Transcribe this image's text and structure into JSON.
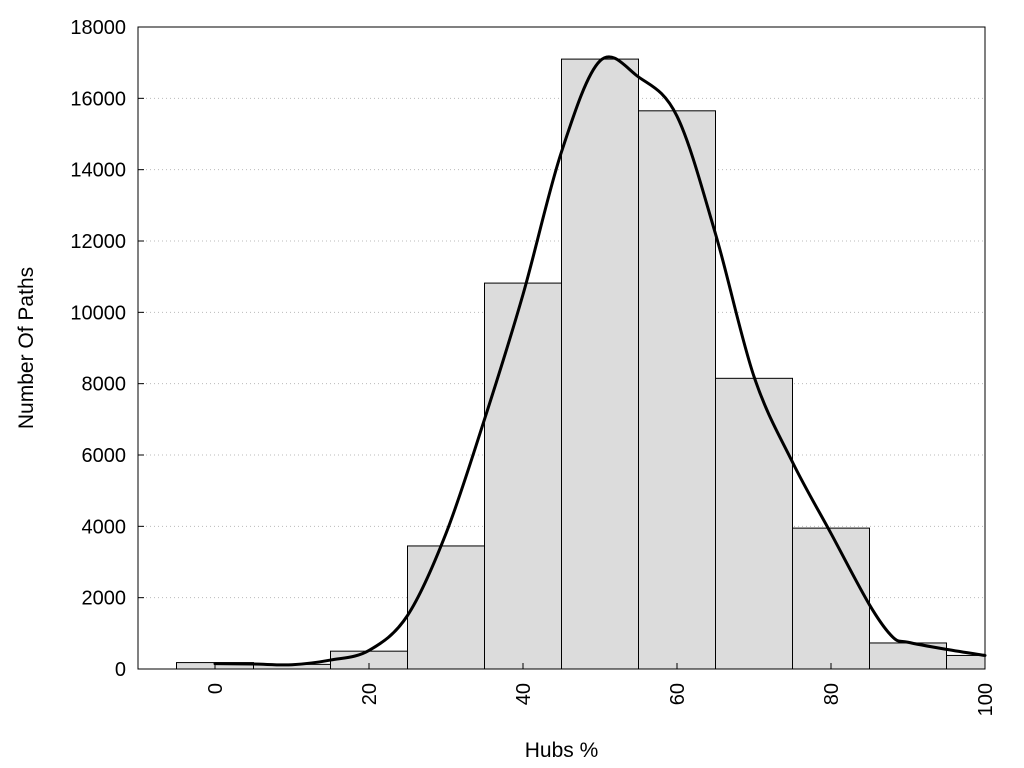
{
  "chart_data": {
    "type": "bar",
    "title": "",
    "xlabel": "Hubs %",
    "ylabel": "Number Of Paths",
    "xlim": [
      -10,
      100
    ],
    "ylim": [
      0,
      18000
    ],
    "xticks": [
      0,
      20,
      40,
      60,
      80,
      100
    ],
    "yticks": [
      0,
      2000,
      4000,
      6000,
      8000,
      10000,
      12000,
      14000,
      16000,
      18000
    ],
    "grid": "horizontal-dotted",
    "bar_fill": "#dcdcdc",
    "bar_stroke": "#000000",
    "bins": [
      {
        "x0": -5,
        "x1": 5,
        "value": 180
      },
      {
        "x0": 5,
        "x1": 15,
        "value": 130
      },
      {
        "x0": 15,
        "x1": 25,
        "value": 500
      },
      {
        "x0": 25,
        "x1": 35,
        "value": 3450
      },
      {
        "x0": 35,
        "x1": 45,
        "value": 10820
      },
      {
        "x0": 45,
        "x1": 55,
        "value": 17100
      },
      {
        "x0": 55,
        "x1": 65,
        "value": 15650
      },
      {
        "x0": 65,
        "x1": 75,
        "value": 8150
      },
      {
        "x0": 75,
        "x1": 85,
        "value": 3950
      },
      {
        "x0": 85,
        "x1": 95,
        "value": 730
      },
      {
        "x0": 95,
        "x1": 100,
        "value": 380
      }
    ],
    "curve": {
      "color": "#000000",
      "points": [
        [
          0,
          150
        ],
        [
          5,
          140
        ],
        [
          10,
          120
        ],
        [
          15,
          250
        ],
        [
          20,
          520
        ],
        [
          25,
          1500
        ],
        [
          30,
          3800
        ],
        [
          35,
          7000
        ],
        [
          40,
          10500
        ],
        [
          45,
          14500
        ],
        [
          50,
          17050
        ],
        [
          55,
          16600
        ],
        [
          60,
          15500
        ],
        [
          65,
          12200
        ],
        [
          70,
          8200
        ],
        [
          75,
          5800
        ],
        [
          80,
          3800
        ],
        [
          85,
          1800
        ],
        [
          88,
          900
        ],
        [
          90,
          750
        ],
        [
          95,
          550
        ],
        [
          100,
          380
        ]
      ]
    }
  }
}
